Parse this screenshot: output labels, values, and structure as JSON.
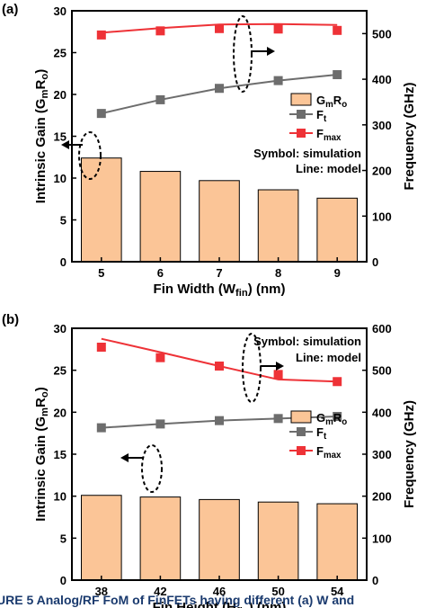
{
  "caption": "URE 5 Analog/RF FoM of FinFETs having different (a) W and",
  "colors": {
    "bar_fill": "#fbc597",
    "bar_stroke": "#000000",
    "ft": "#6d6d6d",
    "fmax": "#ee3237",
    "axis": "#000000"
  },
  "legend": {
    "gmro": "GmRo",
    "ft": "Ft",
    "fmax": "Fmax"
  },
  "chart_data": [
    {
      "type": "bar",
      "panel_label": "(a)",
      "categories": [
        "5",
        "6",
        "7",
        "8",
        "9"
      ],
      "xlabel": "Fin Width (Wfin) (nm)",
      "ylabel": "Intrinsic Gain (GmRo)",
      "y2label": "Frequency (GHz)",
      "ylim": [
        0,
        30
      ],
      "yticks": [
        "0",
        "5",
        "10",
        "15",
        "20",
        "25",
        "30"
      ],
      "y2lim": [
        0,
        550
      ],
      "y2ticks": [
        "0",
        "100",
        "200",
        "300",
        "400",
        "500"
      ],
      "legend_position": "right-middle",
      "annotations": [
        "Symbol: simulation",
        "Line: model"
      ],
      "series": [
        {
          "name": "GmRo",
          "type": "bar",
          "axis": "left",
          "values": [
            12.4,
            10.8,
            9.7,
            8.6,
            7.6
          ]
        },
        {
          "name": "Ft",
          "type": "line+marker",
          "axis": "right",
          "values": [
            325,
            355,
            380,
            397,
            410
          ]
        },
        {
          "name": "Fmax",
          "type": "marker",
          "axis": "right",
          "values": [
            497,
            506,
            511,
            510,
            507
          ]
        },
        {
          "name": "Fmax model",
          "type": "line",
          "axis": "right",
          "values": [
            502,
            512,
            520,
            521,
            519
          ]
        }
      ]
    },
    {
      "type": "bar",
      "panel_label": "(b)",
      "categories": [
        "38",
        "42",
        "46",
        "50",
        "54"
      ],
      "xlabel": "Fin Height (Hfin) (nm)",
      "ylabel": "Intrinsic Gain (GmRo)",
      "y2label": "Frequency (GHz)",
      "ylim": [
        0,
        30
      ],
      "yticks": [
        "0",
        "5",
        "10",
        "15",
        "20",
        "25",
        "30"
      ],
      "y2lim": [
        0,
        600
      ],
      "y2ticks": [
        "0",
        "100",
        "200",
        "300",
        "400",
        "500",
        "600"
      ],
      "legend_position": "right-middle",
      "annotations": [
        "Symbol: simulation",
        "Line: model"
      ],
      "series": [
        {
          "name": "GmRo",
          "type": "bar",
          "axis": "left",
          "values": [
            10.1,
            9.9,
            9.6,
            9.3,
            9.1
          ]
        },
        {
          "name": "Ft",
          "type": "line+marker",
          "axis": "right",
          "values": [
            363,
            372,
            380,
            385,
            390
          ]
        },
        {
          "name": "Fmax",
          "type": "marker",
          "axis": "right",
          "values": [
            555,
            530,
            510,
            490,
            473
          ]
        },
        {
          "name": "Fmax model",
          "type": "line",
          "axis": "right",
          "values": [
            575,
            543,
            510,
            478,
            473
          ]
        }
      ]
    }
  ]
}
